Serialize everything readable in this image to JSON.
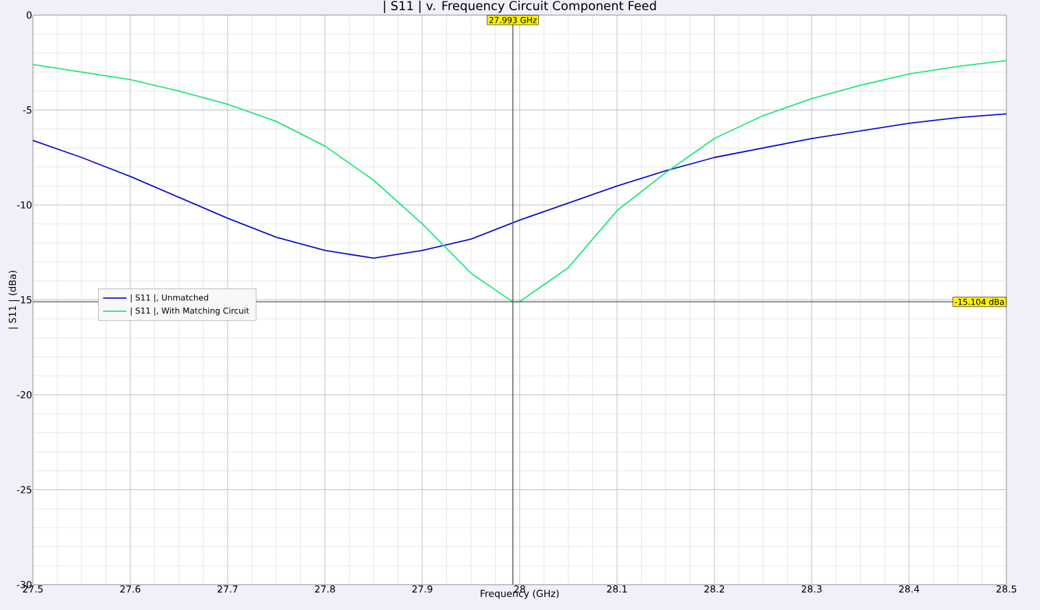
{
  "chart_data": {
    "type": "line",
    "title": "| S11 | v. Frequency Circuit Component Feed",
    "xlabel": "Frequency (GHz)",
    "ylabel": "| S11 | (dBa)",
    "xlim": [
      27.5,
      28.5
    ],
    "ylim": [
      -30,
      0
    ],
    "xticks": [
      27.5,
      27.6,
      27.7,
      27.8,
      27.9,
      28,
      28.1,
      28.2,
      28.3,
      28.4,
      28.5
    ],
    "yticks": [
      -30,
      -25,
      -20,
      -15,
      -10,
      -5,
      0
    ],
    "grid": true,
    "legend": "left",
    "line_style": "solid",
    "marker": "none",
    "series": [
      {
        "name": "| S11 |, Unmatched",
        "color": "#0a0ad2",
        "x": [
          27.5,
          27.55,
          27.6,
          27.65,
          27.7,
          27.75,
          27.8,
          27.85,
          27.9,
          27.95,
          28.0,
          28.05,
          28.1,
          28.15,
          28.2,
          28.25,
          28.3,
          28.35,
          28.4,
          28.45,
          28.5
        ],
        "values": [
          -6.6,
          -7.5,
          -8.5,
          -9.6,
          -10.7,
          -11.7,
          -12.4,
          -12.8,
          -12.4,
          -11.8,
          -10.8,
          -9.9,
          -9.0,
          -8.2,
          -7.5,
          -7.0,
          -6.5,
          -6.1,
          -5.7,
          -5.4,
          -5.2
        ]
      },
      {
        "name": "| S11 |, With Matching Circuit",
        "color": "#1ee678",
        "x": [
          27.5,
          27.55,
          27.6,
          27.65,
          27.7,
          27.75,
          27.8,
          27.85,
          27.9,
          27.95,
          27.993,
          28.0,
          28.05,
          28.1,
          28.15,
          28.2,
          28.25,
          28.3,
          28.35,
          28.4,
          28.45,
          28.5
        ],
        "values": [
          -2.6,
          -3.0,
          -3.4,
          -4.0,
          -4.7,
          -5.6,
          -6.9,
          -8.7,
          -11.0,
          -13.6,
          -15.104,
          -15.1,
          -13.3,
          -10.3,
          -8.3,
          -6.5,
          -5.3,
          -4.4,
          -3.7,
          -3.1,
          -2.7,
          -2.4
        ]
      }
    ],
    "ref_lines": [
      {
        "axis": "x",
        "value": 27.993,
        "label": "27.993 GHz",
        "color": "#555555"
      },
      {
        "axis": "y",
        "value": -15.104,
        "label": "-15.104 dBa",
        "color": "#555555"
      }
    ]
  }
}
